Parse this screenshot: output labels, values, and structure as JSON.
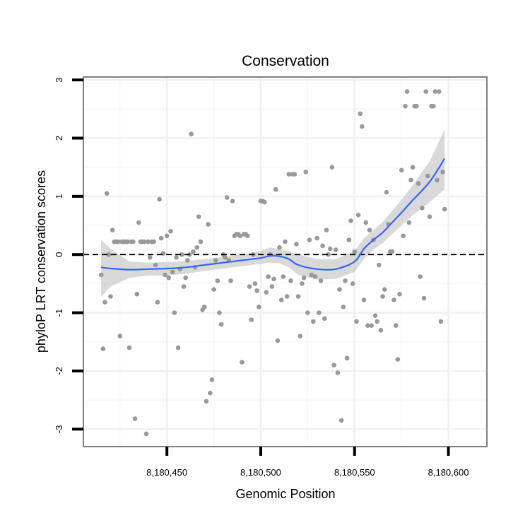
{
  "chart_data": {
    "type": "scatter",
    "title": "Conservation",
    "xlabel": "Genomic Position",
    "ylabel": "phyloP LRT conservation scores",
    "xlim": [
      8180405.5,
      8180620.5
    ],
    "ylim": [
      -3.3,
      3.05
    ],
    "x_ticks": [
      8180450,
      8180500,
      8180550,
      8180600
    ],
    "x_tick_labels": [
      "8,180,450",
      "8,180,500",
      "8,180,550",
      "8,180,600"
    ],
    "y_ticks": [
      -3,
      -2,
      -1,
      0,
      1,
      2,
      3
    ],
    "y_tick_labels": [
      "-3",
      "-2",
      "-1",
      "0",
      "1",
      "2",
      "3"
    ],
    "reference_line": {
      "y": 0,
      "style": "dashed",
      "color": "#000000"
    },
    "colors": {
      "points": "#999999",
      "smooth_line": "#3366ff",
      "ribbon": "#cccccc",
      "panel_border": "#7f7f7f",
      "grid_major": "#f0f0f0",
      "grid_minor": "#f8f8f8"
    },
    "points": [
      [
        8180415,
        -0.35
      ],
      [
        8180416,
        -1.62
      ],
      [
        8180417,
        -0.82
      ],
      [
        8180418,
        1.05
      ],
      [
        8180419,
        0.0
      ],
      [
        8180420,
        -0.72
      ],
      [
        8180421,
        0.42
      ],
      [
        8180422,
        0.22
      ],
      [
        8180423,
        0.22
      ],
      [
        8180424,
        0.22
      ],
      [
        8180425,
        -1.4
      ],
      [
        8180426,
        0.22
      ],
      [
        8180427,
        0.22
      ],
      [
        8180428,
        0.22
      ],
      [
        8180429,
        0.22
      ],
      [
        8180430,
        -1.6
      ],
      [
        8180431,
        0.22
      ],
      [
        8180432,
        0.22
      ],
      [
        8180433,
        -2.82
      ],
      [
        8180434,
        -0.68
      ],
      [
        8180435,
        0.55
      ],
      [
        8180436,
        0.22
      ],
      [
        8180437,
        0.22
      ],
      [
        8180438,
        0.22
      ],
      [
        8180439,
        -3.08
      ],
      [
        8180440,
        0.22
      ],
      [
        8180441,
        -0.05
      ],
      [
        8180442,
        0.22
      ],
      [
        8180443,
        0.22
      ],
      [
        8180444,
        -0.18
      ],
      [
        8180445,
        -0.82
      ],
      [
        8180446,
        0.95
      ],
      [
        8180447,
        0.28
      ],
      [
        8180448,
        0.02
      ],
      [
        8180449,
        -0.35
      ],
      [
        8180450,
        0.32
      ],
      [
        8180451,
        -0.4
      ],
      [
        8180452,
        0.4
      ],
      [
        8180453,
        -0.3
      ],
      [
        8180454,
        -1.0
      ],
      [
        8180455,
        -0.05
      ],
      [
        8180456,
        -1.6
      ],
      [
        8180457,
        -0.25
      ],
      [
        8180458,
        0.0
      ],
      [
        8180459,
        -0.55
      ],
      [
        8180460,
        -0.4
      ],
      [
        8180461,
        -0.1
      ],
      [
        8180462,
        0.0
      ],
      [
        8180463,
        2.07
      ],
      [
        8180464,
        0.05
      ],
      [
        8180465,
        -0.22
      ],
      [
        8180466,
        0.12
      ],
      [
        8180467,
        0.65
      ],
      [
        8180468,
        0.22
      ],
      [
        8180469,
        -0.95
      ],
      [
        8180470,
        -0.9
      ],
      [
        8180471,
        -2.52
      ],
      [
        8180472,
        0.52
      ],
      [
        8180473,
        -2.38
      ],
      [
        8180474,
        -2.15
      ],
      [
        8180475,
        -0.6
      ],
      [
        8180476,
        -0.1
      ],
      [
        8180477,
        -0.45
      ],
      [
        8180478,
        -1.0
      ],
      [
        8180479,
        -1.2
      ],
      [
        8180480,
        0.0
      ],
      [
        8180481,
        -0.05
      ],
      [
        8180482,
        0.98
      ],
      [
        8180483,
        -0.1
      ],
      [
        8180484,
        -0.45
      ],
      [
        8180485,
        0.92
      ],
      [
        8180486,
        0.32
      ],
      [
        8180487,
        0.35
      ],
      [
        8180488,
        0.35
      ],
      [
        8180489,
        0.32
      ],
      [
        8180490,
        -1.85
      ],
      [
        8180491,
        0.35
      ],
      [
        8180492,
        0.35
      ],
      [
        8180493,
        0.32
      ],
      [
        8180494,
        -0.55
      ],
      [
        8180495,
        -1.12
      ],
      [
        8180496,
        0.0
      ],
      [
        8180497,
        -0.5
      ],
      [
        8180498,
        -0.62
      ],
      [
        8180499,
        -0.9
      ],
      [
        8180500,
        0.92
      ],
      [
        8180501,
        0.92
      ],
      [
        8180502,
        0.9
      ],
      [
        8180503,
        -0.65
      ],
      [
        8180504,
        -0.38
      ],
      [
        8180505,
        0.0
      ],
      [
        8180506,
        -0.55
      ],
      [
        8180507,
        -0.42
      ],
      [
        8180508,
        1.12
      ],
      [
        8180509,
        -1.48
      ],
      [
        8180510,
        0.12
      ],
      [
        8180511,
        -0.78
      ],
      [
        8180512,
        -0.38
      ],
      [
        8180513,
        0.22
      ],
      [
        8180514,
        -0.72
      ],
      [
        8180515,
        1.38
      ],
      [
        8180516,
        -0.45
      ],
      [
        8180517,
        1.38
      ],
      [
        8180518,
        1.38
      ],
      [
        8180519,
        0.18
      ],
      [
        8180520,
        -0.72
      ],
      [
        8180521,
        -1.4
      ],
      [
        8180522,
        -0.5
      ],
      [
        8180523,
        -0.4
      ],
      [
        8180524,
        1.42
      ],
      [
        8180525,
        -1.0
      ],
      [
        8180526,
        0.25
      ],
      [
        8180527,
        -0.35
      ],
      [
        8180528,
        -1.15
      ],
      [
        8180529,
        -0.38
      ],
      [
        8180530,
        0.28
      ],
      [
        8180531,
        -1.0
      ],
      [
        8180532,
        -0.45
      ],
      [
        8180533,
        0.15
      ],
      [
        8180534,
        -1.1
      ],
      [
        8180535,
        0.42
      ],
      [
        8180536,
        0.0
      ],
      [
        8180537,
        0.1
      ],
      [
        8180538,
        1.5
      ],
      [
        8180539,
        -1.9
      ],
      [
        8180540,
        0.08
      ],
      [
        8180541,
        -2.03
      ],
      [
        8180542,
        -0.6
      ],
      [
        8180543,
        -2.85
      ],
      [
        8180544,
        -0.9
      ],
      [
        8180545,
        -0.45
      ],
      [
        8180546,
        -1.78
      ],
      [
        8180547,
        0.25
      ],
      [
        8180548,
        0.58
      ],
      [
        8180549,
        -0.5
      ],
      [
        8180550,
        0.05
      ],
      [
        8180551,
        -1.15
      ],
      [
        8180552,
        0.68
      ],
      [
        8180553,
        2.42
      ],
      [
        8180554,
        2.2
      ],
      [
        8180555,
        -0.78
      ],
      [
        8180556,
        0.55
      ],
      [
        8180557,
        -1.22
      ],
      [
        8180558,
        0.42
      ],
      [
        8180559,
        -1.22
      ],
      [
        8180560,
        0.25
      ],
      [
        8180561,
        -1.05
      ],
      [
        8180562,
        -1.15
      ],
      [
        8180563,
        -0.18
      ],
      [
        8180564,
        -1.3
      ],
      [
        8180565,
        -0.72
      ],
      [
        8180566,
        -0.6
      ],
      [
        8180567,
        1.07
      ],
      [
        8180568,
        0.52
      ],
      [
        8180569,
        0.05
      ],
      [
        8180570,
        0.05
      ],
      [
        8180571,
        -0.78
      ],
      [
        8180572,
        -1.22
      ],
      [
        8180573,
        -1.8
      ],
      [
        8180574,
        -0.68
      ],
      [
        8180575,
        1.45
      ],
      [
        8180576,
        0.32
      ],
      [
        8180577,
        2.55
      ],
      [
        8180578,
        2.8
      ],
      [
        8180579,
        0.55
      ],
      [
        8180580,
        1.28
      ],
      [
        8180581,
        1.5
      ],
      [
        8180582,
        2.55
      ],
      [
        8180583,
        2.55
      ],
      [
        8180584,
        1.22
      ],
      [
        8180585,
        -0.38
      ],
      [
        8180586,
        0.8
      ],
      [
        8180587,
        -0.75
      ],
      [
        8180588,
        2.8
      ],
      [
        8180589,
        1.35
      ],
      [
        8180590,
        0.65
      ],
      [
        8180591,
        2.55
      ],
      [
        8180592,
        2.55
      ],
      [
        8180593,
        2.8
      ],
      [
        8180594,
        1.28
      ],
      [
        8180595,
        2.8
      ],
      [
        8180596,
        -1.15
      ],
      [
        8180597,
        1.42
      ],
      [
        8180598,
        0.78
      ]
    ],
    "smooth_curve": {
      "x": [
        8180415,
        8180420,
        8180430,
        8180440,
        8180450,
        8180460,
        8180470,
        8180480,
        8180490,
        8180500,
        8180505,
        8180510,
        8180515,
        8180520,
        8180530,
        8180540,
        8180550,
        8180555,
        8180560,
        8180565,
        8180570,
        8180575,
        8180580,
        8180590,
        8180598
      ],
      "y": [
        -0.22,
        -0.24,
        -0.26,
        -0.25,
        -0.24,
        -0.22,
        -0.18,
        -0.14,
        -0.1,
        -0.06,
        -0.02,
        -0.03,
        -0.08,
        -0.18,
        -0.25,
        -0.25,
        -0.12,
        0.1,
        0.25,
        0.38,
        0.55,
        0.72,
        0.9,
        1.25,
        1.65
      ],
      "lower": [
        -0.72,
        -0.55,
        -0.4,
        -0.36,
        -0.36,
        -0.33,
        -0.28,
        -0.24,
        -0.2,
        -0.16,
        -0.14,
        -0.15,
        -0.22,
        -0.35,
        -0.43,
        -0.42,
        -0.3,
        -0.08,
        0.08,
        0.2,
        0.35,
        0.5,
        0.65,
        0.9,
        1.12
      ],
      "upper": [
        0.25,
        0.1,
        -0.12,
        -0.14,
        -0.13,
        -0.11,
        -0.08,
        -0.04,
        0.0,
        0.06,
        0.12,
        0.09,
        0.06,
        0.0,
        -0.08,
        -0.08,
        0.06,
        0.28,
        0.42,
        0.56,
        0.75,
        0.94,
        1.15,
        1.6,
        2.15
      ]
    }
  }
}
